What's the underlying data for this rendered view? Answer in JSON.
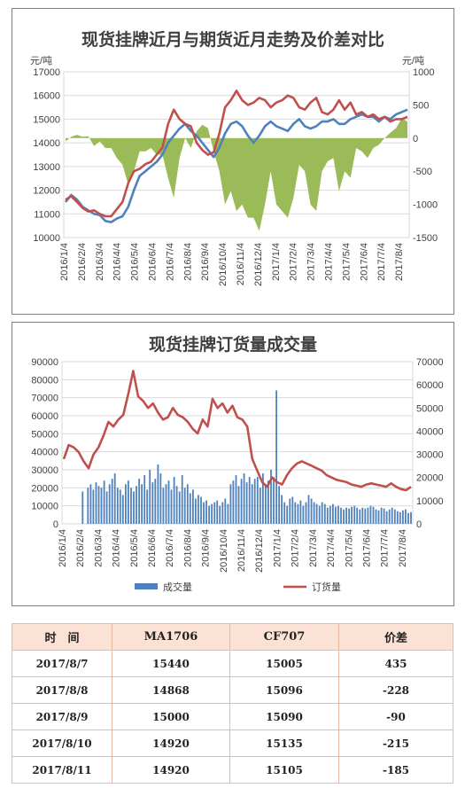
{
  "chart_data": [
    {
      "type": "line",
      "title": "现货挂牌近月与期货近月走势及价差对比",
      "y_left_unit": "元/吨",
      "y_right_unit": "元/吨",
      "x_ticks": [
        "2016/1/4",
        "2016/2/4",
        "2016/3/4",
        "2016/4/4",
        "2016/5/4",
        "2016/6/4",
        "2016/7/4",
        "2016/8/4",
        "2016/9/4",
        "2016/10/4",
        "2016/11/4",
        "2016/12/4",
        "2017/1/4",
        "2017/2/4",
        "2017/3/4",
        "2017/4/4",
        "2017/5/4",
        "2017/6/4",
        "2017/7/4",
        "2017/8/4"
      ],
      "ylim_left": [
        10000,
        17000
      ],
      "y_ticks_left": [
        10000,
        11000,
        12000,
        13000,
        14000,
        15000,
        16000,
        17000
      ],
      "ylim_right": [
        -1500,
        1000
      ],
      "y_ticks_right": [
        -1500,
        -1000,
        -500,
        0,
        500,
        1000
      ],
      "grid": true,
      "series": [
        {
          "axis": "left",
          "kind": "line",
          "color": "#4f81bd",
          "values": [
            11500,
            11800,
            11600,
            11300,
            11150,
            11000,
            10950,
            10700,
            10650,
            10800,
            10900,
            11300,
            12000,
            12600,
            12800,
            13000,
            13200,
            13500,
            14000,
            14300,
            14600,
            14800,
            14500,
            14300,
            14000,
            13700,
            13400,
            13800,
            14400,
            14800,
            14900,
            14700,
            14300,
            14000,
            14300,
            14700,
            14900,
            14700,
            14600,
            14500,
            14800,
            15000,
            14700,
            14600,
            14700,
            14900,
            14900,
            15000,
            14800,
            14800,
            15000,
            15100,
            15200,
            15100,
            15100,
            14900,
            15100,
            15000,
            15200,
            15300,
            15400
          ]
        },
        {
          "axis": "left",
          "kind": "line",
          "color": "#c0504d",
          "values": [
            11600,
            11750,
            11500,
            11250,
            11100,
            11150,
            11000,
            10900,
            10900,
            11200,
            11500,
            12300,
            12800,
            12900,
            13100,
            13200,
            13500,
            13800,
            14800,
            15400,
            15000,
            14800,
            14700,
            14000,
            13700,
            13500,
            13600,
            14400,
            15500,
            15800,
            16200,
            15800,
            15600,
            15700,
            15900,
            15800,
            15500,
            15700,
            15800,
            16000,
            15900,
            15500,
            15400,
            15700,
            15900,
            15300,
            15200,
            15400,
            15800,
            15400,
            15700,
            15200,
            15300,
            15100,
            15200,
            15000,
            15100,
            14900,
            15000,
            15000,
            15100
          ]
        },
        {
          "axis": "right",
          "kind": "area",
          "color": "#9bbb59",
          "values": [
            -50,
            20,
            50,
            20,
            30,
            -120,
            -50,
            -150,
            -150,
            -300,
            -400,
            -700,
            -500,
            -200,
            -200,
            -150,
            -250,
            -250,
            -600,
            -900,
            -300,
            0,
            -150,
            100,
            200,
            150,
            -200,
            -500,
            -1000,
            -800,
            -1100,
            -1000,
            -1200,
            -1200,
            -1400,
            -1000,
            -500,
            -1000,
            -1100,
            -1200,
            -900,
            -400,
            -500,
            -1000,
            -1100,
            -500,
            -350,
            -300,
            -800,
            -500,
            -600,
            -150,
            -200,
            -300,
            -150,
            -100,
            0,
            80,
            150,
            300,
            250
          ]
        }
      ]
    },
    {
      "type": "bar",
      "title": "现货挂牌订货量成交量",
      "x_ticks": [
        "2016/1/4",
        "2016/2/4",
        "2016/3/4",
        "2016/4/4",
        "2016/5/4",
        "2016/6/4",
        "2016/7/4",
        "2016/8/4",
        "2016/9/4",
        "2016/10/4",
        "2016/11/4",
        "2016/12/4",
        "2017/1/4",
        "2017/2/4",
        "2017/3/4",
        "2017/4/4",
        "2017/5/4",
        "2017/6/4",
        "2017/7/4",
        "2017/8/4"
      ],
      "ylim_left": [
        0,
        90000
      ],
      "y_ticks_left": [
        0,
        10000,
        20000,
        30000,
        40000,
        50000,
        60000,
        70000,
        80000,
        90000
      ],
      "ylim_right": [
        0,
        70000
      ],
      "y_ticks_right": [
        0,
        10000,
        20000,
        30000,
        40000,
        50000,
        60000,
        70000
      ],
      "grid": true,
      "legend": "bottom",
      "series": [
        {
          "name": "成交量",
          "axis": "left",
          "kind": "bar",
          "color": "#4f81bd",
          "values": [
            0,
            0,
            0,
            0,
            0,
            0,
            0,
            18000,
            0,
            20000,
            22000,
            19000,
            23000,
            21000,
            20000,
            24000,
            18000,
            22000,
            25000,
            28000,
            20000,
            19000,
            16000,
            22000,
            24000,
            20000,
            18000,
            21000,
            25000,
            22000,
            27000,
            19000,
            30000,
            23000,
            25000,
            33000,
            28000,
            20000,
            22000,
            24000,
            19000,
            26000,
            21000,
            18000,
            27000,
            20000,
            22000,
            17000,
            19000,
            14000,
            16000,
            15000,
            12000,
            13000,
            10000,
            11000,
            12000,
            13000,
            10000,
            12000,
            14000,
            11000,
            22000,
            24000,
            27000,
            21000,
            25000,
            28000,
            23000,
            26000,
            22000,
            25000,
            26000,
            20000,
            28000,
            22000,
            24000,
            30000,
            26000,
            74000,
            21000,
            16000,
            12000,
            10000,
            14000,
            15000,
            12000,
            11000,
            13000,
            10000,
            12000,
            16000,
            14000,
            12000,
            11000,
            10000,
            12000,
            11000,
            9000,
            10000,
            11000,
            9500,
            10000,
            9000,
            8000,
            9000,
            8500,
            9500,
            10000,
            9000,
            8000,
            9000,
            8500,
            9000,
            10000,
            9500,
            8000,
            7500,
            9000,
            8500,
            7000,
            8000,
            9000,
            8000,
            7000,
            6500,
            7500,
            8000,
            6000,
            6500
          ]
        },
        {
          "name": "订货量",
          "axis": "right",
          "kind": "line",
          "color": "#c0504d",
          "values": [
            28000,
            34000,
            33000,
            31000,
            27000,
            24000,
            30000,
            33000,
            38000,
            44000,
            42000,
            45000,
            47000,
            56000,
            66000,
            55000,
            53000,
            50000,
            52000,
            48000,
            45000,
            46000,
            50000,
            47000,
            46000,
            44000,
            41000,
            39000,
            45000,
            42000,
            54000,
            50000,
            52000,
            48000,
            51000,
            46000,
            45000,
            42000,
            28000,
            23000,
            18000,
            16000,
            20000,
            18000,
            17000,
            21000,
            24000,
            26000,
            27000,
            26000,
            25000,
            24000,
            23000,
            21000,
            20000,
            19000,
            18500,
            18000,
            17000,
            16500,
            16000,
            17000,
            17500,
            17000,
            16500,
            16000,
            17500,
            16000,
            15000,
            14500,
            16000
          ]
        }
      ]
    }
  ],
  "table": {
    "headers": [
      "时　间",
      "MA1706",
      "CF707",
      "价差"
    ],
    "rows": [
      [
        "2017/8/7",
        "15440",
        "15005",
        "435"
      ],
      [
        "2017/8/8",
        "14868",
        "15096",
        "-228"
      ],
      [
        "2017/8/9",
        "15000",
        "15090",
        "-90"
      ],
      [
        "2017/8/10",
        "14920",
        "15135",
        "-215"
      ],
      [
        "2017/8/11",
        "14920",
        "15105",
        "-185"
      ]
    ]
  }
}
